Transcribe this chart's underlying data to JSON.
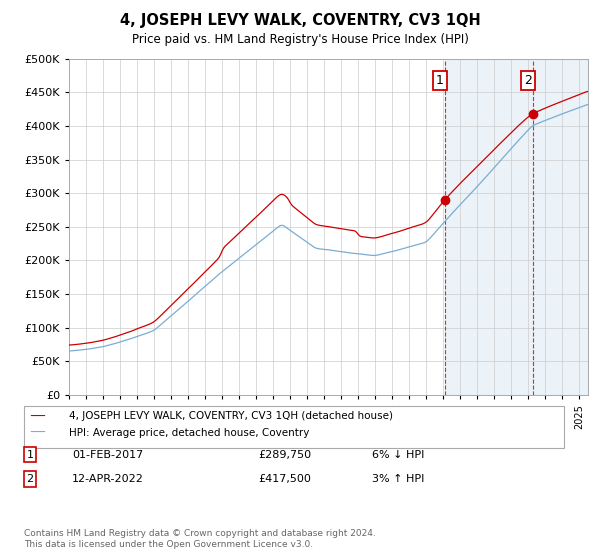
{
  "title": "4, JOSEPH LEVY WALK, COVENTRY, CV3 1QH",
  "subtitle": "Price paid vs. HM Land Registry's House Price Index (HPI)",
  "ylim": [
    0,
    500000
  ],
  "yticks": [
    0,
    50000,
    100000,
    150000,
    200000,
    250000,
    300000,
    350000,
    400000,
    450000,
    500000
  ],
  "xlim_start": 1995.0,
  "xlim_end": 2025.5,
  "hpi_color": "#7aadd4",
  "price_color": "#cc0000",
  "shade_color": "#ddeeff",
  "marker1_x": 2017.083,
  "marker1_y": 289750,
  "marker2_x": 2022.29,
  "marker2_y": 417500,
  "legend_label1": "4, JOSEPH LEVY WALK, COVENTRY, CV3 1QH (detached house)",
  "legend_label2": "HPI: Average price, detached house, Coventry",
  "table_row1": [
    "1",
    "01-FEB-2017",
    "£289,750",
    "6% ↓ HPI"
  ],
  "table_row2": [
    "2",
    "12-APR-2022",
    "£417,500",
    "3% ↑ HPI"
  ],
  "footnote": "Contains HM Land Registry data © Crown copyright and database right 2024.\nThis data is licensed under the Open Government Licence v3.0.",
  "background_color": "#ffffff",
  "grid_color": "#cccccc"
}
